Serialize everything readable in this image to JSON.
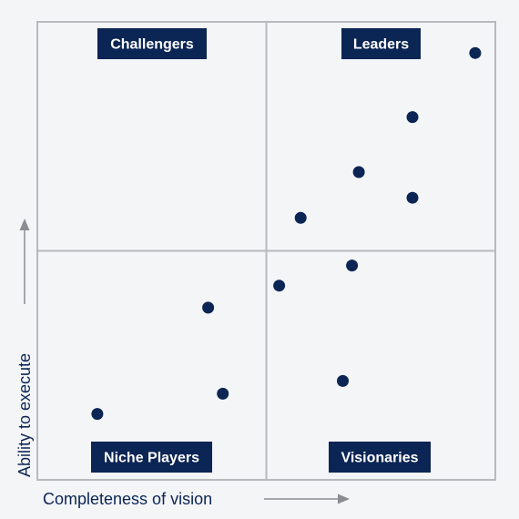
{
  "chart_data": {
    "type": "scatter",
    "title": "",
    "xlabel": "Completeness of vision",
    "ylabel": "Ability to execute",
    "xlim": [
      0,
      100
    ],
    "ylim": [
      0,
      100
    ],
    "grid": false,
    "quadrants": {
      "top_left": "Challengers",
      "top_right": "Leaders",
      "bottom_left": "Niche Players",
      "bottom_right": "Visionaries"
    },
    "points": [
      {
        "x": 95.6,
        "y": 93.2
      },
      {
        "x": 81.9,
        "y": 79.2
      },
      {
        "x": 70.2,
        "y": 67.2
      },
      {
        "x": 81.9,
        "y": 61.6
      },
      {
        "x": 57.5,
        "y": 57.2
      },
      {
        "x": 68.7,
        "y": 46.8
      },
      {
        "x": 52.8,
        "y": 42.4
      },
      {
        "x": 37.3,
        "y": 37.6
      },
      {
        "x": 66.7,
        "y": 21.6
      },
      {
        "x": 40.5,
        "y": 18.8
      },
      {
        "x": 13.1,
        "y": 14.4
      }
    ],
    "colors": {
      "point": "#0b2554",
      "label_bg": "#0b2554",
      "axis_text": "#0b2554",
      "frame": "#b7b9bd",
      "arrow": "#8a8d91"
    }
  }
}
